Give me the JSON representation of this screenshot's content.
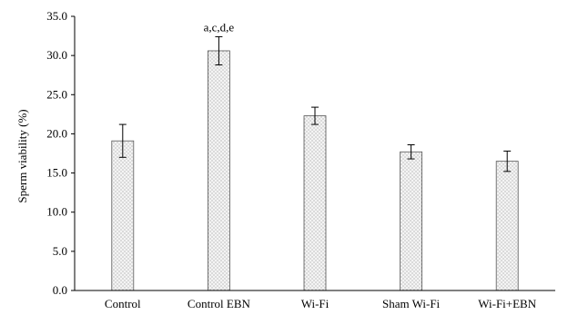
{
  "chart_data": {
    "type": "bar",
    "title": "",
    "xlabel": "",
    "ylabel": "Sperm viability (%)",
    "ylim": [
      0,
      35
    ],
    "yticks": [
      "0.0",
      "5.0",
      "10.0",
      "15.0",
      "20.0",
      "25.0",
      "30.0",
      "35.0"
    ],
    "categories": [
      "Control",
      "Control EBN",
      "Wi-Fi",
      "Sham Wi-Fi",
      "Wi-Fi+EBN"
    ],
    "values": [
      19.1,
      30.6,
      22.3,
      17.7,
      16.5
    ],
    "errors": [
      2.1,
      1.8,
      1.1,
      0.9,
      1.3
    ],
    "annotations": [
      "",
      "a,c,d,e",
      "",
      "",
      ""
    ],
    "bar_fill": "#e6e6e6",
    "bar_pattern": "dotted",
    "grid": false
  }
}
